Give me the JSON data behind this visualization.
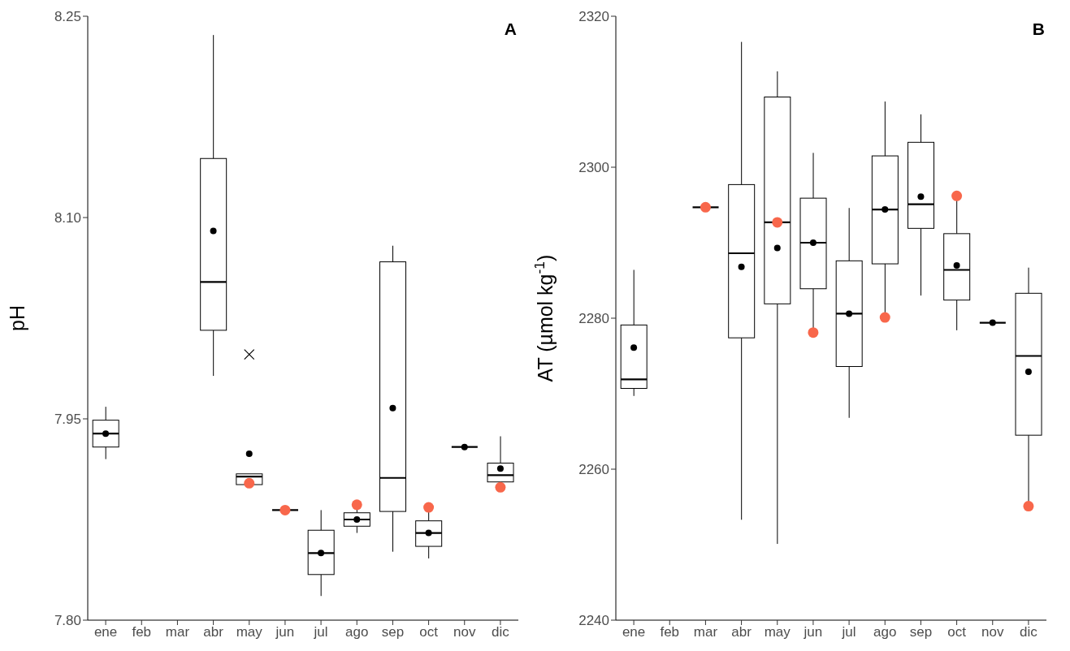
{
  "chart_data": [
    {
      "type": "box",
      "title": "A",
      "ylabel": "pH",
      "categories": [
        "ene",
        "feb",
        "mar",
        "abr",
        "may",
        "jun",
        "jul",
        "ago",
        "sep",
        "oct",
        "nov",
        "dic"
      ],
      "ylim": [
        7.8,
        8.25
      ],
      "yticks": [
        {
          "value": 7.8,
          "label": "7.80"
        },
        7.95,
        {
          "value": 8.1,
          "label": "8.10"
        },
        8.25
      ],
      "color": "#000000",
      "boxes": [
        {
          "low": 7.92,
          "q1": 7.929,
          "median": 7.939,
          "q3": 7.949,
          "high": 7.959,
          "mean": 7.939
        },
        null,
        null,
        {
          "low": 7.982,
          "q1": 8.016,
          "median": 8.052,
          "q3": 8.144,
          "high": 8.236,
          "mean": 8.09
        },
        {
          "low": 7.901,
          "q1": 7.901,
          "median": 7.907,
          "q3": 7.909,
          "high": 7.909,
          "mean": 7.924,
          "outliers": [
            7.998
          ]
        },
        {
          "low": 7.882,
          "q1": 7.882,
          "median": 7.882,
          "q3": 7.882,
          "high": 7.882
        },
        {
          "low": 7.818,
          "q1": 7.834,
          "median": 7.85,
          "q3": 7.867,
          "high": 7.882,
          "mean": 7.85
        },
        {
          "low": 7.865,
          "q1": 7.87,
          "median": 7.875,
          "q3": 7.88,
          "high": 7.886,
          "mean": 7.875
        },
        {
          "low": 7.851,
          "q1": 7.881,
          "median": 7.906,
          "q3": 8.067,
          "high": 8.079,
          "mean": 7.958
        },
        {
          "low": 7.846,
          "q1": 7.855,
          "median": 7.865,
          "q3": 7.874,
          "high": 7.884,
          "mean": 7.865
        },
        {
          "low": 7.929,
          "q1": 7.929,
          "median": 7.929,
          "q3": 7.929,
          "high": 7.929,
          "mean": 7.929
        },
        {
          "low": 7.903,
          "q1": 7.903,
          "median": 7.908,
          "q3": 7.917,
          "high": 7.937,
          "mean": 7.913
        }
      ],
      "series": [
        {
          "type": "scatter",
          "color": "#f8674b",
          "marker": "circle",
          "x": [
            "may",
            "jun",
            "ago",
            "oct",
            "dic"
          ],
          "values": [
            7.902,
            7.882,
            7.886,
            7.884,
            7.899
          ]
        }
      ]
    },
    {
      "type": "box",
      "title": "B",
      "ylabel": "AT (µmol kg$^{-1}$)",
      "categories": [
        "ene",
        "feb",
        "mar",
        "abr",
        "may",
        "jun",
        "jul",
        "ago",
        "sep",
        "oct",
        "nov",
        "dic"
      ],
      "ylim": [
        2240,
        2320
      ],
      "yticks": [
        2240,
        2260,
        2280,
        2300,
        2320
      ],
      "color": "#000000",
      "boxes": [
        {
          "low": 2269.7,
          "q1": 2270.7,
          "median": 2271.9,
          "q3": 2279.1,
          "high": 2286.4,
          "mean": 2276.1
        },
        null,
        {
          "low": 2294.7,
          "q1": 2294.7,
          "median": 2294.7,
          "q3": 2294.7,
          "high": 2294.7
        },
        {
          "low": 2253.3,
          "q1": 2277.4,
          "median": 2288.6,
          "q3": 2297.7,
          "high": 2316.6,
          "mean": 2286.8
        },
        {
          "low": 2250.1,
          "q1": 2281.9,
          "median": 2292.7,
          "q3": 2309.3,
          "high": 2312.7,
          "mean": 2289.3
        },
        {
          "low": 2278.1,
          "q1": 2283.9,
          "median": 2290,
          "q3": 2295.9,
          "high": 2301.9,
          "mean": 2290
        },
        {
          "low": 2266.8,
          "q1": 2273.6,
          "median": 2280.6,
          "q3": 2287.6,
          "high": 2294.6,
          "mean": 2280.6
        },
        {
          "low": 2280.1,
          "q1": 2287.2,
          "median": 2294.4,
          "q3": 2301.5,
          "high": 2308.7,
          "mean": 2294.4
        },
        {
          "low": 2283,
          "q1": 2291.9,
          "median": 2295.1,
          "q3": 2303.3,
          "high": 2307,
          "mean": 2296.1
        },
        {
          "low": 2278.4,
          "q1": 2282.4,
          "median": 2286.4,
          "q3": 2291.2,
          "high": 2296.2,
          "mean": 2287
        },
        {
          "low": 2279.4,
          "q1": 2279.4,
          "median": 2279.4,
          "q3": 2279.4,
          "high": 2279.4,
          "mean": 2279.4
        },
        {
          "low": 2255.1,
          "q1": 2264.5,
          "median": 2275,
          "q3": 2283.3,
          "high": 2286.7,
          "mean": 2272.9
        }
      ],
      "series": [
        {
          "type": "scatter",
          "color": "#f8674b",
          "marker": "circle",
          "x": [
            "mar",
            "may",
            "jun",
            "ago",
            "oct",
            "dic"
          ],
          "values": [
            2294.7,
            2292.7,
            2278.1,
            2280.1,
            2296.2,
            2255.1
          ]
        }
      ]
    }
  ]
}
